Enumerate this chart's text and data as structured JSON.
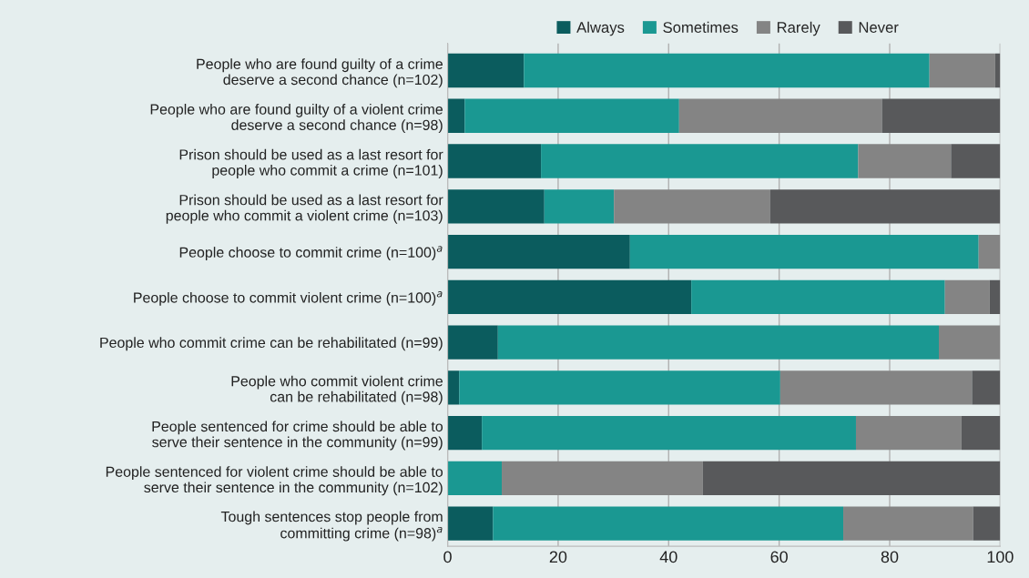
{
  "chart_data": {
    "type": "bar",
    "orientation": "horizontal",
    "stacked": true,
    "categories": [
      "People who are found guilty of a crime\ndeserve a second chance (n=102)",
      "People who are found guilty of a violent crime\ndeserve a second chance (n=98)",
      "Prison should be used as a last resort for\npeople who commit a crime (n=101)",
      "Prison should be used as a last resort for\npeople who commit a violent crime (n=103)",
      "People choose to commit crime (n=100)$^{a}$",
      "People choose to commit violent crime (n=100)$^{a}$",
      "People who commit crime can be rehabilitated (n=99)",
      "People who commit violent crime\ncan be rehabilitated (n=98)",
      "People sentenced for crime should be able to\nserve their sentence in the community (n=99)",
      "People sentenced for violent crime should be able to\nserve their sentence in the community (n=102)",
      "Tough sentences stop people from\ncommitting crime (n=98)$^{a}$"
    ],
    "series": [
      {
        "name": "Always",
        "color": "#0b5c5e",
        "values": [
          13.8,
          3.1,
          16.9,
          17.5,
          33.0,
          44.1,
          9.1,
          2.1,
          6.2,
          0,
          8.2
        ]
      },
      {
        "name": "Sometimes",
        "color": "#1a9892",
        "values": [
          73.4,
          38.8,
          57.4,
          12.6,
          63.1,
          45.9,
          79.8,
          58.1,
          67.7,
          9.8,
          63.4
        ]
      },
      {
        "name": "Rarely",
        "color": "#848484",
        "values": [
          11.9,
          36.7,
          16.8,
          28.3,
          3.9,
          8.1,
          11.1,
          34.7,
          19.1,
          36.4,
          23.5
        ]
      },
      {
        "name": "Never",
        "color": "#58595b",
        "values": [
          0.9,
          21.4,
          8.9,
          41.6,
          0,
          1.9,
          0,
          5.1,
          7.0,
          53.8,
          4.9
        ]
      }
    ],
    "xlim": [
      0,
      100
    ],
    "xticks": [
      0,
      20,
      40,
      60,
      80,
      100
    ],
    "grid": "x",
    "legend": "top right"
  }
}
